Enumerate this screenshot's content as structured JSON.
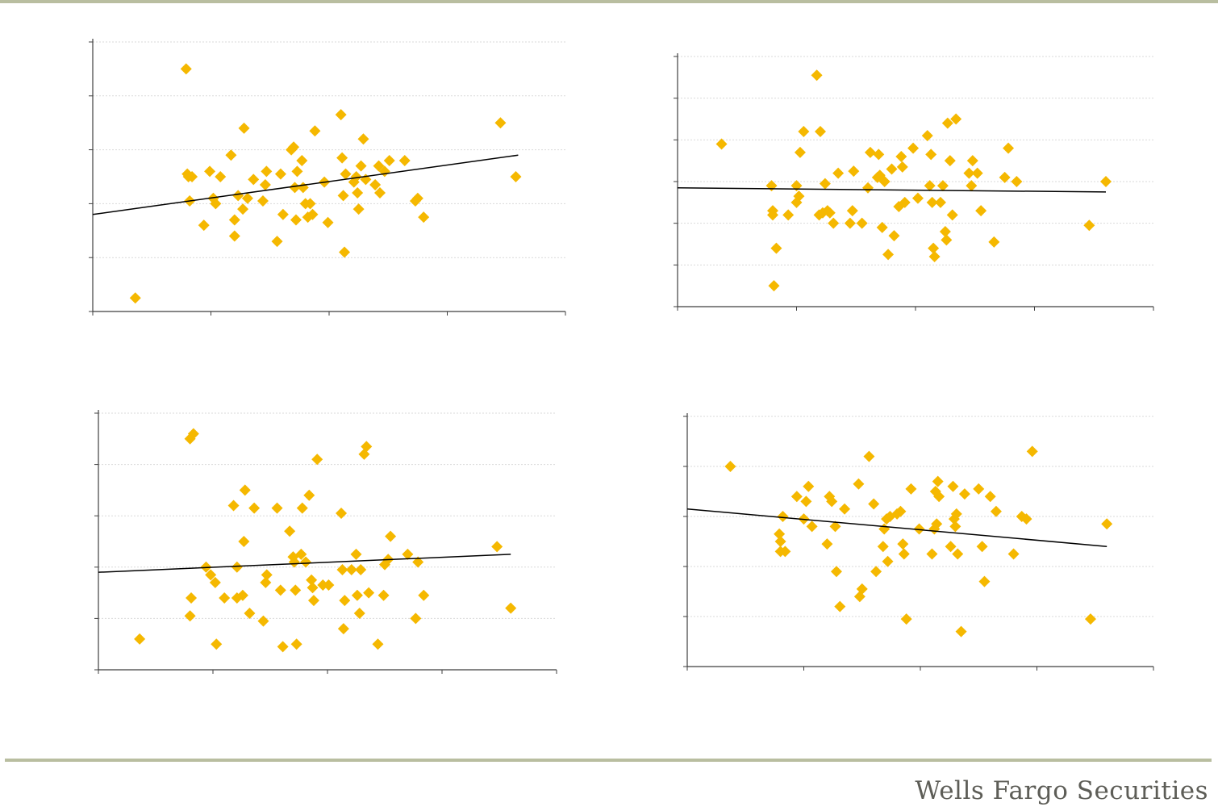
{
  "footer": {
    "brand": "Wells Fargo Securities"
  },
  "colors": {
    "marker": "#f5b800",
    "trend": "#000000",
    "axis": "#3f3f3f",
    "grid": "#d9d9d9",
    "rule": "#b9bea0"
  },
  "chart_data": [
    {
      "type": "scatter",
      "title": "",
      "xlabel": "",
      "ylabel": "",
      "xlim": [
        0,
        4
      ],
      "ylim": [
        0,
        5
      ],
      "grid": true,
      "trendline": [
        [
          0,
          1.8
        ],
        [
          3.6,
          2.9
        ]
      ],
      "points": [
        [
          0.36,
          0.25
        ],
        [
          0.79,
          4.5
        ],
        [
          0.8,
          2.55
        ],
        [
          0.81,
          2.5
        ],
        [
          0.84,
          2.5
        ],
        [
          0.82,
          2.05
        ],
        [
          0.94,
          1.6
        ],
        [
          0.99,
          2.6
        ],
        [
          1.02,
          2.1
        ],
        [
          1.04,
          2.0
        ],
        [
          1.08,
          2.5
        ],
        [
          1.17,
          2.9
        ],
        [
          1.2,
          1.4
        ],
        [
          1.2,
          1.7
        ],
        [
          1.23,
          2.15
        ],
        [
          1.27,
          1.9
        ],
        [
          1.28,
          3.4
        ],
        [
          1.31,
          2.1
        ],
        [
          1.36,
          2.45
        ],
        [
          1.44,
          2.05
        ],
        [
          1.46,
          2.35
        ],
        [
          1.47,
          2.6
        ],
        [
          1.56,
          1.3
        ],
        [
          1.59,
          2.55
        ],
        [
          1.61,
          1.8
        ],
        [
          1.68,
          3.0
        ],
        [
          1.7,
          3.05
        ],
        [
          1.71,
          2.3
        ],
        [
          1.72,
          1.7
        ],
        [
          1.73,
          2.6
        ],
        [
          1.77,
          2.8
        ],
        [
          1.78,
          2.3
        ],
        [
          1.8,
          2.0
        ],
        [
          1.82,
          1.75
        ],
        [
          1.84,
          2.0
        ],
        [
          1.86,
          1.8
        ],
        [
          1.88,
          3.35
        ],
        [
          1.96,
          2.4
        ],
        [
          1.99,
          1.65
        ],
        [
          2.1,
          3.65
        ],
        [
          2.11,
          2.85
        ],
        [
          2.12,
          2.15
        ],
        [
          2.13,
          1.1
        ],
        [
          2.14,
          2.55
        ],
        [
          2.21,
          2.4
        ],
        [
          2.23,
          2.5
        ],
        [
          2.24,
          2.2
        ],
        [
          2.25,
          1.9
        ],
        [
          2.27,
          2.7
        ],
        [
          2.29,
          3.2
        ],
        [
          2.31,
          2.45
        ],
        [
          2.39,
          2.35
        ],
        [
          2.42,
          2.7
        ],
        [
          2.43,
          2.2
        ],
        [
          2.47,
          2.6
        ],
        [
          2.51,
          2.8
        ],
        [
          2.64,
          2.8
        ],
        [
          2.73,
          2.05
        ],
        [
          2.75,
          2.1
        ],
        [
          2.8,
          1.75
        ],
        [
          3.45,
          3.5
        ],
        [
          3.58,
          2.5
        ]
      ]
    },
    {
      "type": "scatter",
      "title": "",
      "xlabel": "",
      "ylabel": "",
      "xlim": [
        0,
        4
      ],
      "ylim": [
        0,
        6
      ],
      "grid": true,
      "trendline": [
        [
          0,
          2.85
        ],
        [
          3.6,
          2.75
        ]
      ],
      "points": [
        [
          0.37,
          3.9
        ],
        [
          0.79,
          2.9
        ],
        [
          0.8,
          2.3
        ],
        [
          0.8,
          2.2
        ],
        [
          0.81,
          0.5
        ],
        [
          0.83,
          1.4
        ],
        [
          0.93,
          2.2
        ],
        [
          1.0,
          2.9
        ],
        [
          1.0,
          2.5
        ],
        [
          1.02,
          2.65
        ],
        [
          1.03,
          3.7
        ],
        [
          1.06,
          4.2
        ],
        [
          1.17,
          5.55
        ],
        [
          1.19,
          2.2
        ],
        [
          1.2,
          4.2
        ],
        [
          1.22,
          2.25
        ],
        [
          1.24,
          2.95
        ],
        [
          1.26,
          2.3
        ],
        [
          1.28,
          2.25
        ],
        [
          1.31,
          2.0
        ],
        [
          1.35,
          3.2
        ],
        [
          1.45,
          2.0
        ],
        [
          1.47,
          2.3
        ],
        [
          1.48,
          3.25
        ],
        [
          1.55,
          2.0
        ],
        [
          1.6,
          2.85
        ],
        [
          1.62,
          3.7
        ],
        [
          1.68,
          3.1
        ],
        [
          1.69,
          3.65
        ],
        [
          1.7,
          3.15
        ],
        [
          1.72,
          1.9
        ],
        [
          1.74,
          3.0
        ],
        [
          1.77,
          1.25
        ],
        [
          1.8,
          3.3
        ],
        [
          1.82,
          1.7
        ],
        [
          1.86,
          2.4
        ],
        [
          1.88,
          3.6
        ],
        [
          1.89,
          3.35
        ],
        [
          1.91,
          2.5
        ],
        [
          1.98,
          3.8
        ],
        [
          2.02,
          2.6
        ],
        [
          2.1,
          4.1
        ],
        [
          2.12,
          2.9
        ],
        [
          2.13,
          3.65
        ],
        [
          2.14,
          2.5
        ],
        [
          2.15,
          1.4
        ],
        [
          2.16,
          1.2
        ],
        [
          2.21,
          2.5
        ],
        [
          2.23,
          2.9
        ],
        [
          2.25,
          1.8
        ],
        [
          2.26,
          1.6
        ],
        [
          2.27,
          4.4
        ],
        [
          2.29,
          3.5
        ],
        [
          2.31,
          2.2
        ],
        [
          2.34,
          4.5
        ],
        [
          2.45,
          3.2
        ],
        [
          2.47,
          2.9
        ],
        [
          2.48,
          3.5
        ],
        [
          2.52,
          3.2
        ],
        [
          2.55,
          2.3
        ],
        [
          2.66,
          1.55
        ],
        [
          2.75,
          3.1
        ],
        [
          2.78,
          3.8
        ],
        [
          2.85,
          3.0
        ],
        [
          3.46,
          1.95
        ],
        [
          3.6,
          3.0
        ]
      ]
    },
    {
      "type": "scatter",
      "title": "",
      "xlabel": "",
      "ylabel": "",
      "xlim": [
        0,
        4
      ],
      "ylim": [
        0,
        5
      ],
      "grid": true,
      "trendline": [
        [
          0,
          1.9
        ],
        [
          3.6,
          2.25
        ]
      ],
      "points": [
        [
          0.36,
          0.6
        ],
        [
          0.8,
          4.5
        ],
        [
          0.8,
          1.05
        ],
        [
          0.81,
          1.4
        ],
        [
          0.83,
          4.6
        ],
        [
          0.94,
          2.0
        ],
        [
          0.98,
          1.85
        ],
        [
          1.02,
          1.7
        ],
        [
          1.03,
          0.5
        ],
        [
          1.1,
          1.4
        ],
        [
          1.18,
          3.2
        ],
        [
          1.21,
          2.0
        ],
        [
          1.21,
          1.4
        ],
        [
          1.26,
          1.45
        ],
        [
          1.27,
          2.5
        ],
        [
          1.28,
          3.5
        ],
        [
          1.32,
          1.1
        ],
        [
          1.36,
          3.15
        ],
        [
          1.44,
          0.95
        ],
        [
          1.46,
          1.7
        ],
        [
          1.47,
          1.85
        ],
        [
          1.56,
          3.15
        ],
        [
          1.59,
          1.55
        ],
        [
          1.61,
          0.45
        ],
        [
          1.67,
          2.7
        ],
        [
          1.7,
          2.2
        ],
        [
          1.71,
          2.1
        ],
        [
          1.72,
          1.55
        ],
        [
          1.73,
          0.5
        ],
        [
          1.77,
          2.25
        ],
        [
          1.78,
          3.15
        ],
        [
          1.81,
          2.1
        ],
        [
          1.84,
          3.4
        ],
        [
          1.86,
          1.75
        ],
        [
          1.87,
          1.6
        ],
        [
          1.88,
          1.35
        ],
        [
          1.91,
          4.1
        ],
        [
          1.96,
          1.65
        ],
        [
          2.01,
          1.65
        ],
        [
          2.12,
          3.05
        ],
        [
          2.13,
          1.95
        ],
        [
          2.14,
          0.8
        ],
        [
          2.15,
          1.35
        ],
        [
          2.21,
          1.95
        ],
        [
          2.25,
          2.25
        ],
        [
          2.26,
          1.45
        ],
        [
          2.28,
          1.1
        ],
        [
          2.29,
          1.95
        ],
        [
          2.32,
          4.2
        ],
        [
          2.34,
          4.35
        ],
        [
          2.36,
          1.5
        ],
        [
          2.44,
          0.5
        ],
        [
          2.49,
          1.45
        ],
        [
          2.5,
          2.05
        ],
        [
          2.53,
          2.15
        ],
        [
          2.55,
          2.6
        ],
        [
          2.7,
          2.25
        ],
        [
          2.79,
          2.1
        ],
        [
          2.77,
          1.0
        ],
        [
          2.84,
          1.45
        ],
        [
          3.48,
          2.4
        ],
        [
          3.6,
          1.2
        ]
      ]
    },
    {
      "type": "scatter",
      "title": "",
      "xlabel": "",
      "ylabel": "",
      "xlim": [
        0,
        4
      ],
      "ylim": [
        0,
        5
      ],
      "grid": true,
      "trendline": [
        [
          0,
          3.15
        ],
        [
          3.6,
          2.4
        ]
      ],
      "points": [
        [
          0.37,
          4.0
        ],
        [
          0.79,
          2.65
        ],
        [
          0.8,
          2.5
        ],
        [
          0.8,
          2.3
        ],
        [
          0.82,
          3.0
        ],
        [
          0.84,
          2.3
        ],
        [
          0.94,
          3.4
        ],
        [
          1.0,
          2.95
        ],
        [
          1.02,
          3.3
        ],
        [
          1.04,
          3.6
        ],
        [
          1.07,
          2.8
        ],
        [
          1.2,
          2.45
        ],
        [
          1.22,
          3.4
        ],
        [
          1.24,
          3.3
        ],
        [
          1.27,
          2.8
        ],
        [
          1.28,
          1.9
        ],
        [
          1.31,
          1.2
        ],
        [
          1.35,
          3.15
        ],
        [
          1.47,
          3.65
        ],
        [
          1.48,
          1.4
        ],
        [
          1.5,
          1.55
        ],
        [
          1.56,
          4.2
        ],
        [
          1.6,
          3.25
        ],
        [
          1.62,
          1.9
        ],
        [
          1.68,
          2.4
        ],
        [
          1.69,
          2.75
        ],
        [
          1.71,
          2.95
        ],
        [
          1.72,
          2.1
        ],
        [
          1.74,
          3.0
        ],
        [
          1.8,
          3.05
        ],
        [
          1.83,
          3.1
        ],
        [
          1.85,
          2.45
        ],
        [
          1.86,
          2.25
        ],
        [
          1.88,
          0.95
        ],
        [
          1.92,
          3.55
        ],
        [
          1.99,
          2.75
        ],
        [
          2.1,
          2.25
        ],
        [
          2.12,
          2.75
        ],
        [
          2.13,
          3.5
        ],
        [
          2.14,
          2.85
        ],
        [
          2.15,
          3.7
        ],
        [
          2.16,
          3.4
        ],
        [
          2.26,
          2.4
        ],
        [
          2.28,
          3.6
        ],
        [
          2.29,
          2.95
        ],
        [
          2.3,
          2.8
        ],
        [
          2.31,
          3.05
        ],
        [
          2.32,
          2.25
        ],
        [
          2.35,
          0.7
        ],
        [
          2.38,
          3.45
        ],
        [
          2.5,
          3.55
        ],
        [
          2.53,
          2.4
        ],
        [
          2.55,
          1.7
        ],
        [
          2.6,
          3.4
        ],
        [
          2.65,
          3.1
        ],
        [
          2.8,
          2.25
        ],
        [
          2.87,
          3.0
        ],
        [
          2.91,
          2.95
        ],
        [
          2.96,
          4.3
        ],
        [
          3.46,
          0.95
        ],
        [
          3.6,
          2.85
        ]
      ]
    }
  ]
}
